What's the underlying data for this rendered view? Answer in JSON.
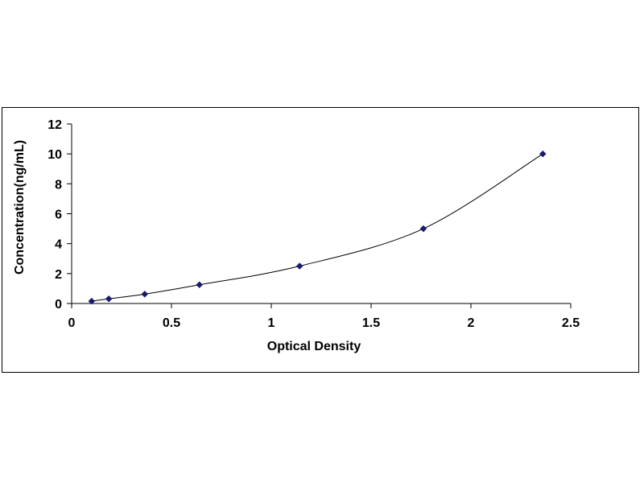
{
  "chart_data": {
    "type": "scatter",
    "title": "",
    "xlabel": "Optical Density",
    "ylabel": "Concentration(ng/mL)",
    "xlim": [
      0,
      2.5
    ],
    "ylim": [
      0,
      12
    ],
    "x_ticks": [
      "0",
      "0.5",
      "1",
      "1.5",
      "2",
      "2.5"
    ],
    "y_ticks": [
      "0",
      "2",
      "4",
      "6",
      "8",
      "10",
      "12"
    ],
    "grid": false,
    "legend": "none",
    "series": [
      {
        "x": [
          0.1,
          0.186,
          0.366,
          0.64,
          1.142,
          1.762,
          2.36
        ],
        "y": [
          0.156,
          0.312,
          0.625,
          1.25,
          2.5,
          5,
          10
        ],
        "marker": "diamond",
        "fit_line": "smooth",
        "color": "#1a1a6e"
      }
    ],
    "line_color": "#000000"
  }
}
